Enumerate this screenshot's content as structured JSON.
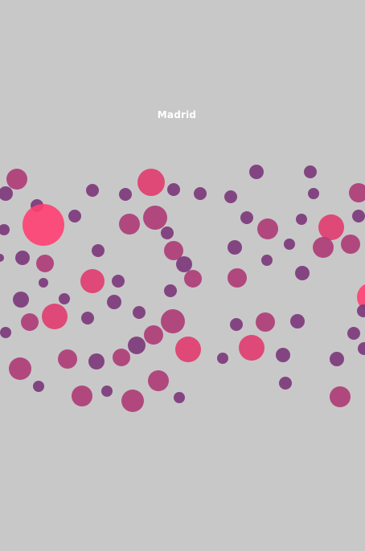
{
  "title": "Madrid",
  "colors": {
    "background": "#c8c8c8",
    "small": "#7d3a7c",
    "medium": "#ad3a76",
    "large": "#e03b6e",
    "largest": "#ff3f72"
  },
  "legend": "none"
}
